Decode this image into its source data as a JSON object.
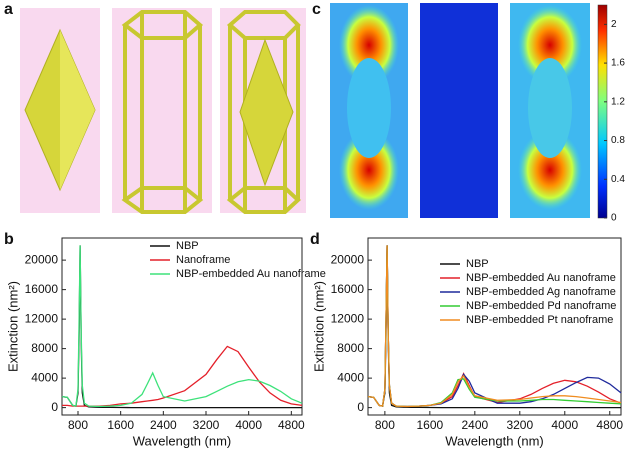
{
  "figure": {
    "labels": [
      "a",
      "c"
    ]
  },
  "colorbar": {
    "lim": [
      0,
      2.2
    ],
    "ticks": [
      0,
      0.4,
      0.8,
      1.2,
      1.6,
      2
    ]
  },
  "chart_data": [
    {
      "type": "line",
      "label": "b",
      "xlabel": "Wavelength (nm)",
      "ylabel": "Extinction (nm²)",
      "x": [
        500,
        600,
        700,
        760,
        800,
        820,
        840,
        860,
        880,
        920,
        1000,
        1200,
        1400,
        1600,
        1800,
        2000,
        2100,
        2200,
        2300,
        2400,
        2800,
        3200,
        3400,
        3600,
        3800,
        4000,
        4200,
        4400,
        4600,
        4800,
        5000
      ],
      "xlim": [
        500,
        5000
      ],
      "xticks": [
        800,
        1600,
        2400,
        3200,
        4000,
        4800
      ],
      "ylim": [
        -1000,
        23000
      ],
      "yticks": [
        0,
        4000,
        8000,
        12000,
        16000,
        20000
      ],
      "legend": "top-right",
      "series": [
        {
          "name": "NBP",
          "color": "#111111",
          "values": [
            1500,
            1400,
            300,
            200,
            2000,
            10000,
            22000,
            9000,
            2000,
            300,
            100,
            50,
            30,
            20,
            10,
            10,
            10,
            10,
            10,
            10,
            10,
            10,
            10,
            10,
            10,
            10,
            10,
            10,
            10,
            10,
            10
          ]
        },
        {
          "name": "Nanoframe",
          "color": "#e4202a",
          "values": [
            300,
            300,
            200,
            200,
            200,
            200,
            200,
            200,
            200,
            200,
            200,
            200,
            300,
            500,
            600,
            800,
            900,
            1000,
            1100,
            1300,
            2300,
            4500,
            6500,
            8300,
            7600,
            5500,
            3500,
            2000,
            1000,
            500,
            300
          ]
        },
        {
          "name": "NBP-embedded Au nanoframe",
          "color": "#3de27a",
          "values": [
            1500,
            1400,
            300,
            200,
            2500,
            12000,
            22000,
            10000,
            3000,
            600,
            200,
            150,
            200,
            300,
            600,
            1800,
            3200,
            4700,
            3000,
            1500,
            900,
            1500,
            2200,
            2900,
            3500,
            3800,
            3600,
            3000,
            2200,
            1200,
            600
          ]
        }
      ]
    },
    {
      "type": "line",
      "label": "d",
      "xlabel": "Wavelength (nm)",
      "ylabel": "Extinction (nm²)",
      "x": [
        500,
        600,
        700,
        760,
        800,
        820,
        840,
        860,
        880,
        920,
        1000,
        1200,
        1400,
        1600,
        1800,
        2000,
        2100,
        2200,
        2300,
        2400,
        2800,
        3200,
        3400,
        3600,
        3800,
        4000,
        4200,
        4400,
        4600,
        4800,
        5000
      ],
      "xlim": [
        500,
        5000
      ],
      "xticks": [
        800,
        1600,
        2400,
        3200,
        4000,
        4800
      ],
      "ylim": [
        -1000,
        23000
      ],
      "yticks": [
        0,
        4000,
        8000,
        12000,
        16000,
        20000
      ],
      "legend": "center-right",
      "series": [
        {
          "name": "NBP",
          "color": "#111111",
          "values": [
            1500,
            1400,
            300,
            200,
            2000,
            10000,
            22000,
            9000,
            2000,
            300,
            100,
            50,
            30,
            20,
            10,
            10,
            10,
            10,
            10,
            10,
            10,
            10,
            10,
            10,
            10,
            10,
            10,
            10,
            10,
            10,
            10
          ]
        },
        {
          "name": "NBP-embedded Au nanoframe",
          "color": "#e4202a",
          "values": [
            1500,
            1400,
            300,
            200,
            2500,
            12000,
            22000,
            10000,
            3000,
            600,
            200,
            150,
            200,
            300,
            600,
            1500,
            3000,
            4600,
            3000,
            1500,
            700,
            1200,
            1800,
            2600,
            3300,
            3700,
            3500,
            2900,
            2100,
            1200,
            600
          ]
        },
        {
          "name": "NBP-embedded Ag nanoframe",
          "color": "#1f2a9c",
          "values": [
            1500,
            1400,
            300,
            200,
            2500,
            12000,
            22000,
            10000,
            3000,
            600,
            200,
            150,
            200,
            300,
            500,
            1200,
            2600,
            4500,
            3600,
            2000,
            600,
            600,
            800,
            1200,
            1800,
            2600,
            3400,
            4100,
            4000,
            3200,
            2000
          ]
        },
        {
          "name": "NBP-embedded Pd nanoframe",
          "color": "#33cc33",
          "values": [
            1500,
            1400,
            300,
            200,
            2500,
            12000,
            22000,
            10000,
            3000,
            600,
            200,
            150,
            200,
            300,
            700,
            2000,
            3800,
            3900,
            2500,
            1400,
            900,
            900,
            1000,
            1100,
            1100,
            1000,
            900,
            800,
            700,
            600,
            500
          ]
        },
        {
          "name": "NBP-embedded Pt nanoframe",
          "color": "#f08c20",
          "values": [
            1500,
            1400,
            300,
            200,
            2500,
            12000,
            22000,
            10000,
            3000,
            600,
            200,
            150,
            200,
            300,
            600,
            1800,
            3500,
            4300,
            2800,
            1600,
            1000,
            1100,
            1300,
            1500,
            1600,
            1600,
            1500,
            1300,
            1100,
            900,
            700
          ]
        }
      ]
    }
  ]
}
